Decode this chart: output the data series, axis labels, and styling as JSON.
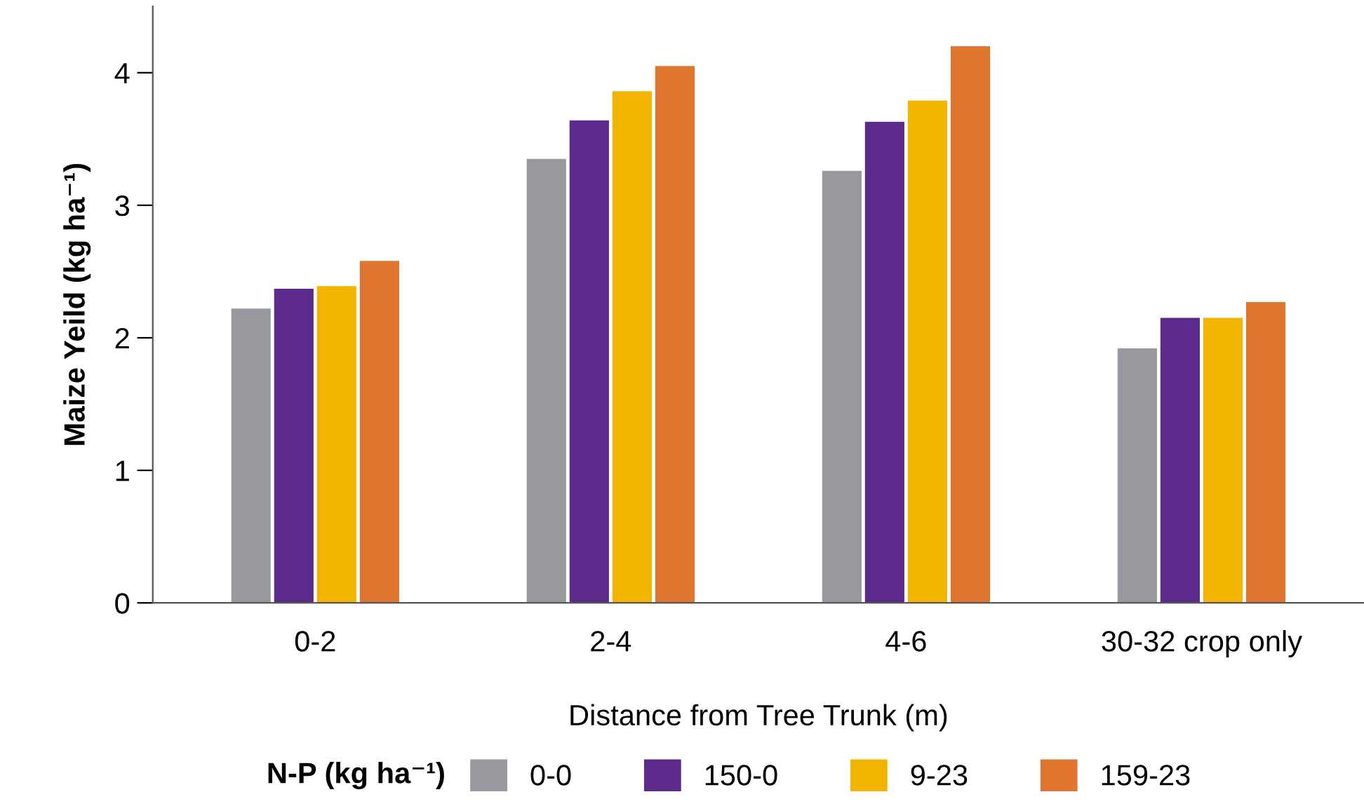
{
  "chart_data": {
    "type": "bar",
    "xlabel": "Distance from Tree Trunk (m)",
    "ylabel": "Maize Yeild (kg ha⁻¹)",
    "legend_title": "N-P (kg ha⁻¹)",
    "categories": [
      "0-2",
      "2-4",
      "4-6",
      "30-32 crop only"
    ],
    "series": [
      {
        "name": "0-0",
        "color": "#98999e",
        "values": [
          2.22,
          3.35,
          3.26,
          1.92
        ]
      },
      {
        "name": "150-0",
        "color": "#5c2a8a",
        "values": [
          2.37,
          3.64,
          3.63,
          2.15
        ]
      },
      {
        "name": "9-23",
        "color": "#f2b400",
        "values": [
          2.39,
          3.86,
          3.79,
          2.15
        ]
      },
      {
        "name": "159-23",
        "color": "#e07530",
        "values": [
          2.58,
          4.05,
          4.2,
          2.27
        ]
      }
    ],
    "ylim": [
      0,
      4.5
    ],
    "yticks": [
      0,
      1,
      2,
      3,
      4
    ],
    "grid": false,
    "legend": "bottom"
  }
}
